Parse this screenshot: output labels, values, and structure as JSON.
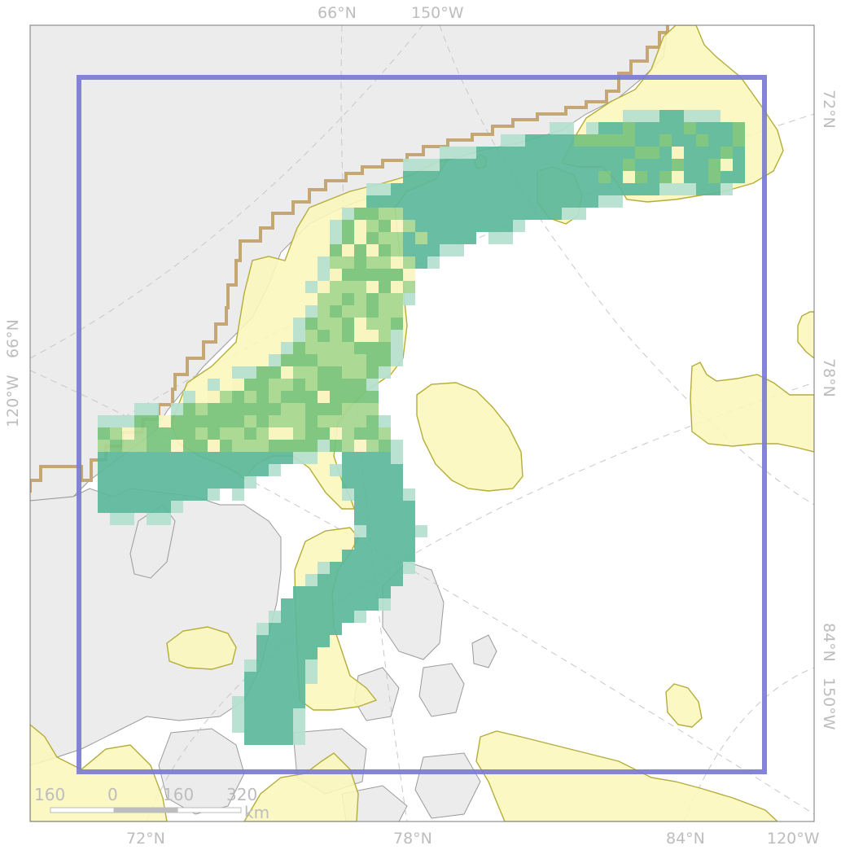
{
  "graticule_labels": {
    "top": [
      "66°N",
      "150°W"
    ],
    "bottom": [
      "72°N",
      "78°N",
      "84°N",
      "120°W"
    ],
    "left": [
      "66°N",
      "120°W"
    ],
    "right": [
      "72°N",
      "78°N",
      "84°N",
      "150°W"
    ]
  },
  "scale_bar": {
    "ticks": [
      "160",
      "0",
      "160",
      "320"
    ],
    "unit": "km"
  },
  "colors": {
    "land": "#ececec",
    "coastline": "#9a9a9a",
    "graticule": "#c8c8c8",
    "boundary_frame": "#7b7bd1",
    "stepped_boundary": "#c4a774",
    "range_polygon_fill": "#fbf7bb",
    "range_polygon_stroke": "#b4ad3a",
    "raster_low": "#b4dfcf",
    "raster_mid": "#5bb79b",
    "raster_high": "#76c27c",
    "raster_top": "#f8f4c1"
  }
}
